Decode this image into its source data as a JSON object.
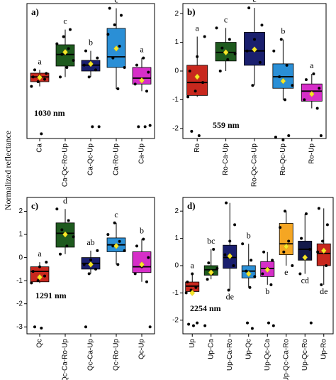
{
  "ylabel": "Normalized reflectance",
  "chart_data": [
    {
      "type": "box",
      "panel": "a)",
      "annotation": "1030 nm",
      "ylim": [
        -3.1,
        2.6
      ],
      "categories": [
        "Ca",
        "Ca-Qc-Ro-Up",
        "Ca-Qc-Up",
        "Ca-Ro-Up",
        "Ca-Up"
      ],
      "colors": [
        "#c8281e",
        "#1e5a1e",
        "#1a1f6e",
        "#2a8fd6",
        "#d62ec8"
      ],
      "letters": [
        "a",
        "c",
        "b",
        "c",
        "a"
      ],
      "letter_side": [
        "top",
        "top",
        "top",
        "top",
        "top"
      ],
      "boxes": [
        {
          "low": -0.9,
          "q1": -0.7,
          "median": -0.5,
          "q3": -0.34,
          "high": -0.2,
          "mean": -0.52
        },
        {
          "low": -0.5,
          "q1": -0.04,
          "median": 0.45,
          "q3": 0.86,
          "high": 1.5,
          "mean": 0.55
        },
        {
          "low": -0.5,
          "q1": -0.25,
          "median": 0.0,
          "q3": 0.2,
          "high": 0.6,
          "mean": 0.05
        },
        {
          "low": -1.0,
          "q1": -0.1,
          "median": 0.35,
          "q3": 1.55,
          "high": 2.4,
          "mean": 0.7
        },
        {
          "low": -1.1,
          "q1": -0.8,
          "median": -0.55,
          "q3": -0.1,
          "high": 0.3,
          "mean": -0.65
        }
      ],
      "points": [
        [
          -0.9,
          -0.7,
          -0.6,
          -0.5,
          -0.45,
          -0.35,
          -0.2,
          -2.9
        ],
        [
          -0.5,
          -0.1,
          0.2,
          0.45,
          0.7,
          0.9,
          1.2,
          1.5
        ],
        [
          -0.5,
          -0.2,
          0.0,
          0.1,
          0.3,
          0.6,
          -2.6,
          -2.6
        ],
        [
          -1.0,
          -0.1,
          0.3,
          0.8,
          1.3,
          1.7,
          2.1,
          2.4
        ],
        [
          -1.1,
          -0.8,
          -0.6,
          -0.3,
          0.0,
          0.3,
          -2.55,
          -2.6,
          -2.6
        ]
      ]
    },
    {
      "type": "box",
      "panel": "b)",
      "annotation": "559 nm",
      "ylim": [
        -2.35,
        2.35
      ],
      "yticks": [
        -2,
        -1,
        0,
        1,
        2
      ],
      "categories": [
        "Ro",
        "Ro-Ca-Up",
        "Ro-Qc-Ca-Up",
        "Ro-Qc-Up",
        "Ro-Up"
      ],
      "colors": [
        "#c8281e",
        "#1e5a1e",
        "#1a1f6e",
        "#2a8fd6",
        "#d62ec8"
      ],
      "letters": [
        "a",
        "c",
        "c",
        "b",
        "a"
      ],
      "letter_side": [
        "top",
        "top",
        "top",
        "top",
        "top"
      ],
      "boxes": [
        {
          "low": -0.9,
          "q1": -0.85,
          "median": -0.4,
          "q3": 0.2,
          "high": 1.2,
          "mean": -0.2
        },
        {
          "low": 0.0,
          "q1": 0.35,
          "median": 0.65,
          "q3": 1.0,
          "high": 1.5,
          "mean": 0.65
        },
        {
          "low": -0.5,
          "q1": 0.2,
          "median": 0.7,
          "q3": 1.35,
          "high": 2.2,
          "mean": 0.75
        },
        {
          "low": -1.0,
          "q1": -0.6,
          "median": -0.2,
          "q3": 0.25,
          "high": 1.1,
          "mean": -0.35
        },
        {
          "low": -1.3,
          "q1": -1.05,
          "median": -0.7,
          "q3": -0.45,
          "high": -0.1,
          "mean": -0.8
        }
      ],
      "points": [
        [
          -0.9,
          -0.7,
          -0.4,
          0.0,
          0.5,
          1.2,
          -2.1,
          -2.25
        ],
        [
          0.0,
          0.4,
          0.6,
          0.8,
          1.1,
          1.5
        ],
        [
          -0.5,
          0.3,
          0.7,
          1.1,
          1.6,
          2.2
        ],
        [
          -1.0,
          -0.5,
          -0.2,
          0.2,
          0.7,
          1.1,
          -2.25,
          -2.3,
          -2.4
        ],
        [
          -1.3,
          -1.0,
          -0.8,
          -0.6,
          -0.3,
          -0.1,
          -2.25
        ]
      ]
    },
    {
      "type": "box",
      "panel": "c)",
      "annotation": "1291 nm",
      "ylim": [
        -3.3,
        2.6
      ],
      "yticks": [
        -3,
        -2,
        -1,
        0,
        1,
        2
      ],
      "categories": [
        "Qc",
        "Qc-Ca-Ro-Up",
        "Qc-Ca-Up",
        "Qc-Ro-Up",
        "Qc-Up"
      ],
      "colors": [
        "#c8281e",
        "#1e5a1e",
        "#1a1f6e",
        "#2a8fd6",
        "#d62ec8"
      ],
      "letters": [
        "a",
        "d",
        "ab",
        "c",
        "b"
      ],
      "letter_side": [
        "top",
        "top",
        "top",
        "top",
        "top"
      ],
      "boxes": [
        {
          "low": -1.1,
          "q1": -1.05,
          "median": -0.6,
          "q3": -0.4,
          "high": -0.2,
          "mean": -0.85
        },
        {
          "low": 0.15,
          "q1": 0.45,
          "median": 1.05,
          "q3": 1.5,
          "high": 2.1,
          "mean": 1.0
        },
        {
          "low": -0.7,
          "q1": -0.5,
          "median": -0.25,
          "q3": 0.0,
          "high": 0.3,
          "mean": -0.3
        },
        {
          "low": -0.3,
          "q1": 0.25,
          "median": 0.55,
          "q3": 0.85,
          "high": 1.5,
          "mean": 0.5
        },
        {
          "low": -1.05,
          "q1": -0.65,
          "median": -0.4,
          "q3": 0.25,
          "high": 0.8,
          "mean": -0.3
        }
      ],
      "points": [
        [
          -1.1,
          -1.0,
          -0.8,
          -0.6,
          -0.4,
          -0.2,
          -3.0,
          -3.05
        ],
        [
          0.15,
          0.5,
          0.9,
          1.2,
          1.6,
          2.1
        ],
        [
          -0.7,
          -0.5,
          -0.3,
          -0.1,
          0.3,
          -3.0
        ],
        [
          -0.3,
          0.3,
          0.5,
          0.7,
          1.0,
          1.5
        ],
        [
          -1.05,
          -0.7,
          -0.4,
          0.0,
          0.5,
          0.8,
          -3.0
        ]
      ]
    },
    {
      "type": "box",
      "panel": "d)",
      "annotation": "2254 nm",
      "ylim": [
        -2.5,
        2.5
      ],
      "yticks": [
        -2,
        -1,
        0,
        1,
        2
      ],
      "categories": [
        "Up",
        "Up-Ca",
        "Up-Ca-Ro",
        "Up-Qc",
        "Up-Qc-Ca",
        "Up-Qc-Ca-Ro",
        "Up-Qc-Ro",
        "Up-Ro"
      ],
      "colors": [
        "#c8281e",
        "#1e5a1e",
        "#1a1f6e",
        "#2a8fd6",
        "#d62ec8",
        "#f5a623",
        "#141a4a",
        "#c8281e"
      ],
      "letters": [
        "a",
        "bc",
        "de",
        "b",
        "b",
        "e",
        "cd",
        "de"
      ],
      "letter_side": [
        "top",
        "top",
        "bottom",
        "top",
        "bottom",
        "bottom",
        "bottom",
        "bottom"
      ],
      "boxes": [
        {
          "low": -1.0,
          "q1": -0.95,
          "median": -0.75,
          "q3": -0.6,
          "high": -0.3,
          "mean": -1.0
        },
        {
          "low": -0.5,
          "q1": -0.35,
          "median": -0.15,
          "q3": 0.0,
          "high": 0.6,
          "mean": -0.25
        },
        {
          "low": -0.9,
          "q1": -0.1,
          "median": 0.3,
          "q3": 0.75,
          "high": 2.3,
          "mean": 0.35
        },
        {
          "low": -0.8,
          "q1": -0.45,
          "median": -0.2,
          "q3": 0.0,
          "high": 0.8,
          "mean": -0.3
        },
        {
          "low": -0.7,
          "q1": -0.4,
          "median": -0.1,
          "q3": 0.15,
          "high": 0.5,
          "mean": -0.15
        },
        {
          "low": 0.0,
          "q1": 0.4,
          "median": 0.8,
          "q3": 1.55,
          "high": 2.0,
          "mean": 0.7
        },
        {
          "low": -0.3,
          "q1": 0.2,
          "median": 0.6,
          "q3": 0.9,
          "high": 1.9,
          "mean": 0.3
        },
        {
          "low": -0.7,
          "q1": 0.0,
          "median": 0.45,
          "q3": 0.8,
          "high": 2.1,
          "mean": 0.55
        }
      ],
      "points": [
        [
          -1.0,
          -0.9,
          -0.8,
          -0.6,
          -0.3,
          -2.1,
          -2.15,
          -2.2
        ],
        [
          -0.5,
          -0.3,
          -0.1,
          0.1,
          0.6,
          -2.2
        ],
        [
          -0.9,
          0.0,
          0.4,
          0.9,
          1.5,
          2.3
        ],
        [
          -0.8,
          -0.4,
          -0.2,
          0.2,
          0.8,
          -2.1,
          -2.3
        ],
        [
          -0.7,
          -0.3,
          -0.1,
          0.2,
          0.5,
          -2.1,
          -2.2
        ],
        [
          0.0,
          0.5,
          0.9,
          1.4,
          2.0
        ],
        [
          -0.3,
          0.3,
          0.6,
          1.0,
          1.9,
          -2.1
        ],
        [
          -0.7,
          0.0,
          0.5,
          0.9,
          1.5,
          2.1
        ]
      ]
    }
  ]
}
